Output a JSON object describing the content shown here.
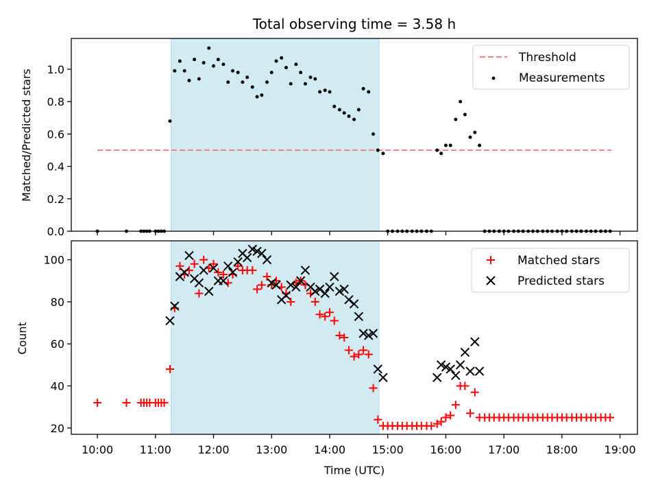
{
  "title": "Total observing time = 3.58 h",
  "colors": {
    "threshold": "#f08080",
    "measurement": "#000000",
    "matched": "#ff0000",
    "predicted": "#000000",
    "span": "#add8e6"
  },
  "chart_data": [
    {
      "type": "scatter",
      "ylabel": "Matched/Predicted stars",
      "xlim": [
        9.55,
        19.3
      ],
      "ylim": [
        0,
        1.19
      ],
      "yticks": [
        0.0,
        0.2,
        0.4,
        0.6,
        0.8,
        1.0
      ],
      "ytick_labels": [
        "0.0",
        "0.2",
        "0.4",
        "0.6",
        "0.8",
        "1.0"
      ],
      "highlight_span": [
        11.27,
        14.85
      ],
      "legend": [
        "Threshold",
        "Measurements"
      ],
      "legend_position": "top-right",
      "threshold": {
        "name": "Threshold",
        "y": 0.5,
        "x": [
          10.0,
          18.85
        ]
      },
      "series": [
        {
          "name": "Measurements",
          "x": [
            10.0,
            10.5,
            10.75,
            10.8,
            10.85,
            10.9,
            11.0,
            11.05,
            11.1,
            11.15,
            11.25,
            11.33,
            11.42,
            11.5,
            11.58,
            11.67,
            11.75,
            11.83,
            11.92,
            12.0,
            12.08,
            12.17,
            12.25,
            12.33,
            12.42,
            12.5,
            12.58,
            12.67,
            12.75,
            12.83,
            12.92,
            13.0,
            13.08,
            13.17,
            13.25,
            13.33,
            13.42,
            13.5,
            13.58,
            13.67,
            13.75,
            13.83,
            13.92,
            14.0,
            14.08,
            14.17,
            14.25,
            14.33,
            14.42,
            14.5,
            14.58,
            14.67,
            14.75,
            14.83,
            14.92,
            15.0,
            15.08,
            15.17,
            15.25,
            15.33,
            15.42,
            15.5,
            15.58,
            15.67,
            15.75,
            15.85,
            15.92,
            16.0,
            16.08,
            16.17,
            16.25,
            16.33,
            16.42,
            16.5,
            16.58,
            16.67,
            16.75,
            16.83,
            16.92,
            17.0,
            17.08,
            17.17,
            17.25,
            17.33,
            17.42,
            17.5,
            17.58,
            17.67,
            17.75,
            17.83,
            17.92,
            18.0,
            18.08,
            18.17,
            18.25,
            18.33,
            18.42,
            18.5,
            18.58,
            18.67,
            18.75,
            18.83
          ],
          "y": [
            0.0,
            0.0,
            0.0,
            0.0,
            0.0,
            0.0,
            0.0,
            0.0,
            0.0,
            0.0,
            0.68,
            0.99,
            1.05,
            0.99,
            0.93,
            1.06,
            0.94,
            1.04,
            1.13,
            1.02,
            1.06,
            1.03,
            0.92,
            0.99,
            0.98,
            0.92,
            0.95,
            0.89,
            0.83,
            0.84,
            0.92,
            0.98,
            1.05,
            1.07,
            1.01,
            0.91,
            1.03,
            0.98,
            0.91,
            0.95,
            0.94,
            0.86,
            0.87,
            0.86,
            0.77,
            0.75,
            0.73,
            0.71,
            0.69,
            0.75,
            0.88,
            0.86,
            0.6,
            0.5,
            0.48,
            0.0,
            0.0,
            0.0,
            0.0,
            0.0,
            0.0,
            0.0,
            0.0,
            0.0,
            0.0,
            0.5,
            0.48,
            0.53,
            0.53,
            0.69,
            0.8,
            0.72,
            0.58,
            0.61,
            0.53,
            0.0,
            0.0,
            0.0,
            0.0,
            0.0,
            0.0,
            0.0,
            0.0,
            0.0,
            0.0,
            0.0,
            0.0,
            0.0,
            0.0,
            0.0,
            0.0,
            0.0,
            0.0,
            0.0,
            0.0,
            0.0,
            0.0,
            0.0,
            0.0,
            0.0,
            0.0,
            0.0
          ]
        }
      ]
    },
    {
      "type": "scatter",
      "ylabel": "Count",
      "xlabel": "Time (UTC)",
      "xlim": [
        9.55,
        19.3
      ],
      "ylim": [
        17,
        109
      ],
      "yticks": [
        20,
        40,
        60,
        80,
        100
      ],
      "ytick_labels": [
        "20",
        "40",
        "60",
        "80",
        "100"
      ],
      "xticks": [
        10,
        11,
        12,
        13,
        14,
        15,
        16,
        17,
        18,
        19
      ],
      "xtick_labels": [
        "10:00",
        "11:00",
        "12:00",
        "13:00",
        "14:00",
        "15:00",
        "16:00",
        "17:00",
        "18:00",
        "19:00"
      ],
      "highlight_span": [
        11.27,
        14.85
      ],
      "legend": [
        "Matched stars",
        "Predicted stars"
      ],
      "legend_position": "top-right",
      "series": [
        {
          "name": "Matched stars",
          "x": [
            10.0,
            10.5,
            10.75,
            10.8,
            10.85,
            10.9,
            11.0,
            11.05,
            11.1,
            11.15,
            11.25,
            11.33,
            11.42,
            11.5,
            11.58,
            11.67,
            11.75,
            11.83,
            11.92,
            12.0,
            12.08,
            12.17,
            12.25,
            12.33,
            12.42,
            12.5,
            12.58,
            12.67,
            12.75,
            12.83,
            12.92,
            13.0,
            13.08,
            13.17,
            13.25,
            13.33,
            13.42,
            13.5,
            13.58,
            13.67,
            13.75,
            13.83,
            13.92,
            14.0,
            14.08,
            14.17,
            14.25,
            14.33,
            14.42,
            14.5,
            14.58,
            14.67,
            14.75,
            14.83,
            14.92,
            15.0,
            15.08,
            15.17,
            15.25,
            15.33,
            15.42,
            15.5,
            15.58,
            15.67,
            15.75,
            15.85,
            15.92,
            16.0,
            16.08,
            16.17,
            16.25,
            16.33,
            16.42,
            16.5,
            16.58,
            16.67,
            16.75,
            16.83,
            16.92,
            17.0,
            17.08,
            17.17,
            17.25,
            17.33,
            17.42,
            17.5,
            17.58,
            17.67,
            17.75,
            17.83,
            17.92,
            18.0,
            18.08,
            18.17,
            18.25,
            18.33,
            18.42,
            18.5,
            18.58,
            18.67,
            18.75,
            18.83
          ],
          "y": [
            32,
            32,
            32,
            32,
            32,
            32,
            32,
            32,
            32,
            32,
            48,
            77,
            97,
            93,
            95,
            98,
            84,
            100,
            96,
            98,
            94,
            93,
            89,
            93,
            97,
            95,
            95,
            95,
            86,
            88,
            92,
            88,
            90,
            87,
            84,
            80,
            89,
            90,
            88,
            84,
            80,
            74,
            73,
            75,
            71,
            64,
            63,
            57,
            54,
            55,
            57,
            55,
            39,
            24,
            21,
            21,
            21,
            21,
            21,
            21,
            21,
            21,
            21,
            21,
            21,
            22,
            23,
            25,
            26,
            31,
            40,
            40,
            27,
            37,
            25,
            25,
            25,
            25,
            25,
            25,
            25,
            25,
            25,
            25,
            25,
            25,
            25,
            25,
            25,
            25,
            25,
            25,
            25,
            25,
            25,
            25,
            25,
            25,
            25,
            25,
            25,
            25
          ]
        },
        {
          "name": "Predicted stars",
          "x": [
            11.25,
            11.33,
            11.42,
            11.5,
            11.58,
            11.67,
            11.75,
            11.83,
            11.92,
            12.0,
            12.08,
            12.17,
            12.25,
            12.33,
            12.42,
            12.5,
            12.58,
            12.67,
            12.75,
            12.83,
            12.92,
            13.0,
            13.08,
            13.17,
            13.25,
            13.33,
            13.42,
            13.5,
            13.58,
            13.67,
            13.75,
            13.83,
            13.92,
            14.0,
            14.08,
            14.17,
            14.25,
            14.33,
            14.42,
            14.5,
            14.58,
            14.67,
            14.75,
            14.83,
            14.92,
            15.85,
            15.92,
            16.0,
            16.08,
            16.17,
            16.25,
            16.33,
            16.42,
            16.5,
            16.58
          ],
          "y": [
            71,
            78,
            92,
            94,
            102,
            91,
            89,
            95,
            85,
            96,
            90,
            90,
            97,
            94,
            99,
            103,
            101,
            105,
            104,
            103,
            100,
            89,
            88,
            81,
            83,
            88,
            87,
            90,
            95,
            87,
            85,
            86,
            84,
            87,
            92,
            85,
            86,
            81,
            79,
            73,
            65,
            64,
            65,
            48,
            44,
            44,
            50,
            49,
            48,
            45,
            50,
            56,
            47,
            61,
            47
          ]
        }
      ]
    }
  ]
}
